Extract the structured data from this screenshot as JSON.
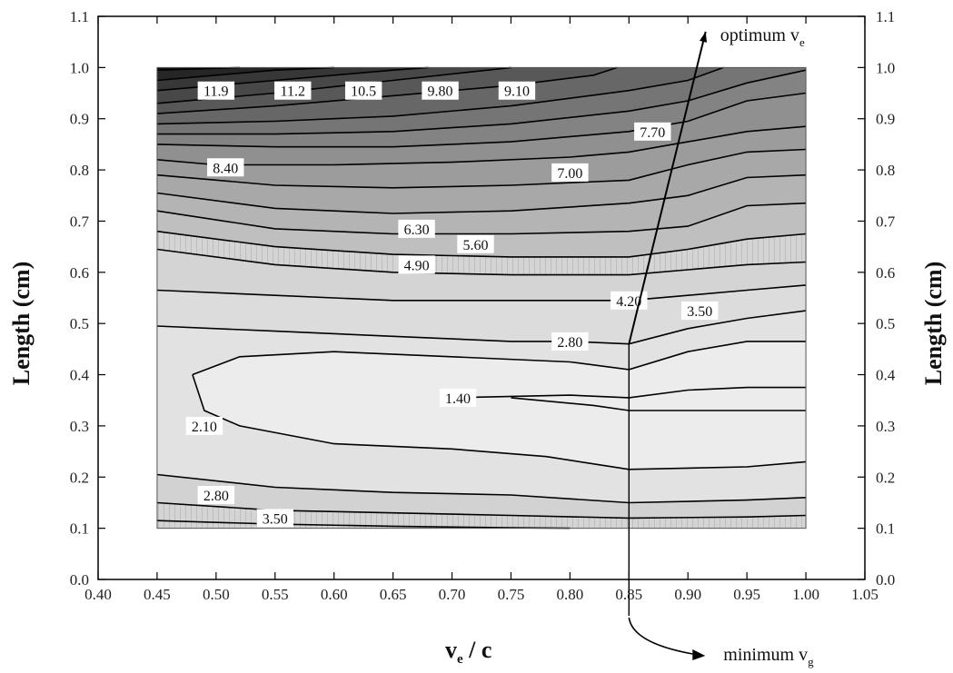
{
  "chart_data": {
    "type": "contour",
    "xlabel": {
      "main": "v",
      "sub": "e",
      "rest": " / c"
    },
    "ylabel_left": "Length (cm)",
    "ylabel_right": "Length (cm)",
    "xlim": [
      0.4,
      1.05
    ],
    "ylim": [
      0.0,
      1.1
    ],
    "xticks": [
      "0.40",
      "0.45",
      "0.50",
      "0.55",
      "0.60",
      "0.65",
      "0.70",
      "0.75",
      "0.80",
      "0.85",
      "0.90",
      "0.95",
      "1.00",
      "1.05"
    ],
    "yticks": [
      "0.0",
      "0.1",
      "0.2",
      "0.3",
      "0.4",
      "0.5",
      "0.6",
      "0.7",
      "0.8",
      "0.9",
      "1.0",
      "1.1"
    ],
    "data_domain": {
      "x": [
        0.45,
        1.0
      ],
      "y": [
        0.1,
        1.0
      ]
    },
    "grid": false,
    "contour_lines": [
      {
        "level": "11.9",
        "points": [
          [
            0.45,
            0.995
          ],
          [
            0.52,
            1.0
          ]
        ]
      },
      {
        "level": "11.2",
        "points": [
          [
            0.45,
            0.975
          ],
          [
            0.55,
            0.995
          ],
          [
            0.6,
            1.0
          ]
        ]
      },
      {
        "level": "10.5",
        "points": [
          [
            0.45,
            0.955
          ],
          [
            0.55,
            0.975
          ],
          [
            0.65,
            0.995
          ],
          [
            0.68,
            1.0
          ]
        ]
      },
      {
        "level": "9.80",
        "points": [
          [
            0.45,
            0.93
          ],
          [
            0.55,
            0.95
          ],
          [
            0.65,
            0.975
          ],
          [
            0.75,
            1.0
          ]
        ]
      },
      {
        "level": "9.10",
        "points": [
          [
            0.45,
            0.91
          ],
          [
            0.55,
            0.925
          ],
          [
            0.65,
            0.945
          ],
          [
            0.75,
            0.965
          ],
          [
            0.82,
            0.985
          ],
          [
            0.84,
            1.0
          ]
        ]
      },
      {
        "level": "8.40",
        "points": [
          [
            0.45,
            0.89
          ],
          [
            0.55,
            0.895
          ],
          [
            0.65,
            0.905
          ],
          [
            0.75,
            0.925
          ],
          [
            0.85,
            0.955
          ],
          [
            0.9,
            0.975
          ],
          [
            0.93,
            1.0
          ]
        ]
      },
      {
        "level": "7.70",
        "points": [
          [
            0.45,
            0.87
          ],
          [
            0.55,
            0.87
          ],
          [
            0.65,
            0.875
          ],
          [
            0.75,
            0.89
          ],
          [
            0.85,
            0.915
          ],
          [
            0.9,
            0.935
          ],
          [
            0.95,
            0.97
          ],
          [
            1.0,
            0.995
          ]
        ]
      },
      {
        "level": "7.00",
        "points": [
          [
            0.45,
            0.85
          ],
          [
            0.55,
            0.845
          ],
          [
            0.65,
            0.845
          ],
          [
            0.75,
            0.855
          ],
          [
            0.85,
            0.875
          ],
          [
            0.9,
            0.895
          ],
          [
            0.95,
            0.935
          ],
          [
            1.0,
            0.95
          ]
        ]
      },
      {
        "level": "6.30",
        "points": [
          [
            0.45,
            0.82
          ],
          [
            0.5,
            0.81
          ],
          [
            0.6,
            0.81
          ],
          [
            0.7,
            0.815
          ],
          [
            0.8,
            0.825
          ],
          [
            0.85,
            0.835
          ],
          [
            0.9,
            0.855
          ],
          [
            0.95,
            0.875
          ],
          [
            1.0,
            0.885
          ]
        ]
      },
      {
        "level": "5.60",
        "points": [
          [
            0.45,
            0.79
          ],
          [
            0.55,
            0.77
          ],
          [
            0.65,
            0.765
          ],
          [
            0.75,
            0.77
          ],
          [
            0.85,
            0.78
          ],
          [
            0.9,
            0.81
          ],
          [
            0.95,
            0.835
          ],
          [
            1.0,
            0.84
          ]
        ]
      },
      {
        "level": "4.90",
        "points": [
          [
            0.45,
            0.755
          ],
          [
            0.55,
            0.725
          ],
          [
            0.65,
            0.715
          ],
          [
            0.75,
            0.72
          ],
          [
            0.85,
            0.735
          ],
          [
            0.9,
            0.75
          ],
          [
            0.95,
            0.785
          ],
          [
            1.0,
            0.79
          ]
        ]
      },
      {
        "level": "4.20",
        "points": [
          [
            0.45,
            0.72
          ],
          [
            0.55,
            0.685
          ],
          [
            0.65,
            0.675
          ],
          [
            0.75,
            0.675
          ],
          [
            0.85,
            0.68
          ],
          [
            0.9,
            0.69
          ],
          [
            0.95,
            0.73
          ],
          [
            1.0,
            0.735
          ]
        ]
      },
      {
        "level": "3.50",
        "points": [
          [
            0.45,
            0.68
          ],
          [
            0.55,
            0.65
          ],
          [
            0.65,
            0.635
          ],
          [
            0.75,
            0.63
          ],
          [
            0.85,
            0.63
          ],
          [
            0.9,
            0.645
          ],
          [
            0.95,
            0.665
          ],
          [
            1.0,
            0.675
          ]
        ]
      },
      {
        "level": "2.80",
        "points": [
          [
            0.45,
            0.645
          ],
          [
            0.55,
            0.615
          ],
          [
            0.65,
            0.6
          ],
          [
            0.75,
            0.595
          ],
          [
            0.85,
            0.595
          ],
          [
            0.9,
            0.605
          ],
          [
            0.95,
            0.615
          ],
          [
            1.0,
            0.62
          ]
        ]
      },
      {
        "level": "2.10",
        "points": [
          [
            0.45,
            0.565
          ],
          [
            0.55,
            0.555
          ],
          [
            0.65,
            0.545
          ],
          [
            0.75,
            0.545
          ],
          [
            0.85,
            0.545
          ],
          [
            0.9,
            0.555
          ],
          [
            0.95,
            0.565
          ],
          [
            1.0,
            0.575
          ]
        ]
      },
      {
        "level": "1.40",
        "points": [
          [
            0.45,
            0.495
          ],
          [
            0.55,
            0.485
          ],
          [
            0.65,
            0.475
          ],
          [
            0.75,
            0.465
          ],
          [
            0.8,
            0.465
          ],
          [
            0.85,
            0.46
          ],
          [
            0.9,
            0.49
          ],
          [
            0.95,
            0.51
          ],
          [
            1.0,
            0.525
          ]
        ]
      },
      {
        "level": "",
        "points": [
          [
            0.48,
            0.4
          ],
          [
            0.52,
            0.435
          ],
          [
            0.6,
            0.445
          ],
          [
            0.7,
            0.435
          ],
          [
            0.8,
            0.425
          ],
          [
            0.85,
            0.41
          ],
          [
            0.9,
            0.445
          ],
          [
            0.95,
            0.465
          ],
          [
            1.0,
            0.465
          ]
        ]
      },
      {
        "level": "",
        "points": [
          [
            0.48,
            0.4
          ],
          [
            0.49,
            0.33
          ],
          [
            0.52,
            0.3
          ],
          [
            0.6,
            0.265
          ],
          [
            0.7,
            0.255
          ],
          [
            0.78,
            0.24
          ],
          [
            0.85,
            0.215
          ],
          [
            0.95,
            0.22
          ],
          [
            1.0,
            0.23
          ]
        ]
      },
      {
        "level": "",
        "points": [
          [
            0.7,
            0.355
          ],
          [
            0.8,
            0.36
          ],
          [
            0.85,
            0.355
          ],
          [
            0.9,
            0.37
          ],
          [
            0.95,
            0.375
          ],
          [
            1.0,
            0.375
          ]
        ]
      },
      {
        "level": "",
        "points": [
          [
            0.75,
            0.355
          ],
          [
            0.82,
            0.34
          ],
          [
            0.85,
            0.33
          ],
          [
            0.95,
            0.33
          ],
          [
            1.0,
            0.33
          ]
        ]
      },
      {
        "level": "",
        "points": [
          [
            0.45,
            0.205
          ],
          [
            0.55,
            0.18
          ],
          [
            0.65,
            0.17
          ],
          [
            0.75,
            0.165
          ],
          [
            0.85,
            0.15
          ],
          [
            0.95,
            0.155
          ],
          [
            1.0,
            0.16
          ]
        ]
      },
      {
        "level": "",
        "points": [
          [
            0.45,
            0.15
          ],
          [
            0.55,
            0.135
          ],
          [
            0.65,
            0.13
          ],
          [
            0.75,
            0.125
          ],
          [
            0.85,
            0.12
          ],
          [
            0.95,
            0.122
          ],
          [
            1.0,
            0.125
          ]
        ]
      },
      {
        "level": "",
        "points": [
          [
            0.45,
            0.115
          ],
          [
            0.55,
            0.108
          ],
          [
            0.65,
            0.104
          ],
          [
            0.75,
            0.101
          ],
          [
            0.8,
            0.1
          ]
        ]
      }
    ],
    "contour_labels": [
      {
        "text": "11.9",
        "x": 0.5,
        "y": 0.955
      },
      {
        "text": "11.2",
        "x": 0.565,
        "y": 0.955
      },
      {
        "text": "10.5",
        "x": 0.625,
        "y": 0.955
      },
      {
        "text": "9.80",
        "x": 0.69,
        "y": 0.955
      },
      {
        "text": "9.10",
        "x": 0.755,
        "y": 0.955
      },
      {
        "text": "7.70",
        "x": 0.87,
        "y": 0.875
      },
      {
        "text": "8.40",
        "x": 0.508,
        "y": 0.805
      },
      {
        "text": "7.00",
        "x": 0.8,
        "y": 0.795
      },
      {
        "text": "6.30",
        "x": 0.67,
        "y": 0.685
      },
      {
        "text": "5.60",
        "x": 0.72,
        "y": 0.655
      },
      {
        "text": "4.90",
        "x": 0.67,
        "y": 0.615
      },
      {
        "text": "4.20",
        "x": 0.85,
        "y": 0.545
      },
      {
        "text": "3.50",
        "x": 0.91,
        "y": 0.525
      },
      {
        "text": "2.80",
        "x": 0.8,
        "y": 0.465
      },
      {
        "text": "1.40",
        "x": 0.705,
        "y": 0.355
      },
      {
        "text": "2.10",
        "x": 0.49,
        "y": 0.3
      },
      {
        "text": "2.80",
        "x": 0.5,
        "y": 0.165
      },
      {
        "text": "3.50",
        "x": 0.55,
        "y": 0.12
      }
    ],
    "annotations": [
      {
        "label": "optimum v",
        "sub": "e",
        "from": [
          0.85,
          0.46
        ],
        "to": [
          0.915,
          1.07
        ]
      },
      {
        "label": "minimum v",
        "sub": "g",
        "from": [
          0.85,
          0.46
        ],
        "to": [
          0.85,
          -0.05
        ]
      }
    ]
  }
}
